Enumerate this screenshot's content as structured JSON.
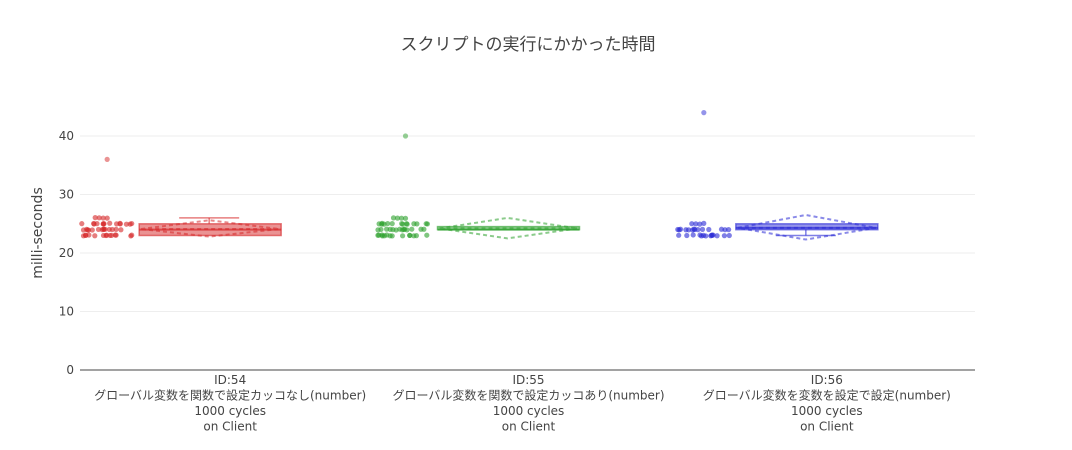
{
  "chart_data": {
    "type": "box",
    "title": "スクリプトの実行にかかった時間",
    "xlabel": "",
    "ylabel": "milli-seconds",
    "ylim": [
      0,
      47
    ],
    "yticks": [
      0,
      10,
      20,
      30,
      40
    ],
    "grid": true,
    "legend": "none",
    "categories": [
      {
        "id": "ID:54",
        "lines": [
          "ID:54",
          "グローバル変数を関数で設定カッコなし(number)",
          "1000 cycles",
          "on Client"
        ]
      },
      {
        "id": "ID:55",
        "lines": [
          "ID:55",
          "グローバル変数を関数で設定カッコあり(number)",
          "1000 cycles",
          "on Client"
        ]
      },
      {
        "id": "ID:56",
        "lines": [
          "ID:56",
          "グローバル変数を変数を設定で設定(number)",
          "1000 cycles",
          "on Client"
        ]
      }
    ],
    "series": [
      {
        "name": "ID:54",
        "color": "#d62728",
        "box": {
          "min": 23,
          "q1": 23,
          "median": 24,
          "q3": 25,
          "max": 26,
          "mean": 24.1,
          "sd_low": 22.8,
          "sd_high": 25.6
        },
        "outliers": [
          36
        ],
        "points_range": [
          23,
          26
        ]
      },
      {
        "name": "ID:55",
        "color": "#2ca02c",
        "box": {
          "min": 24,
          "q1": 24,
          "median": 24,
          "q3": 24,
          "max": 24,
          "mean": 24.2,
          "sd_low": 22.5,
          "sd_high": 26
        },
        "outliers": [
          40
        ],
        "points_range": [
          23,
          26
        ]
      },
      {
        "name": "ID:56",
        "color": "#2a2ad6",
        "box": {
          "min": 23,
          "q1": 24,
          "median": 24.3,
          "q3": 25,
          "max": 25,
          "mean": 24.3,
          "sd_low": 22.3,
          "sd_high": 26.5
        },
        "outliers": [
          44
        ],
        "points_range": [
          23,
          25
        ]
      }
    ]
  },
  "colors": {
    "grid": "#eeeeee",
    "axis": "#444444",
    "red": "#d62728",
    "green": "#2ca02c",
    "blue": "#2a2ad6"
  }
}
